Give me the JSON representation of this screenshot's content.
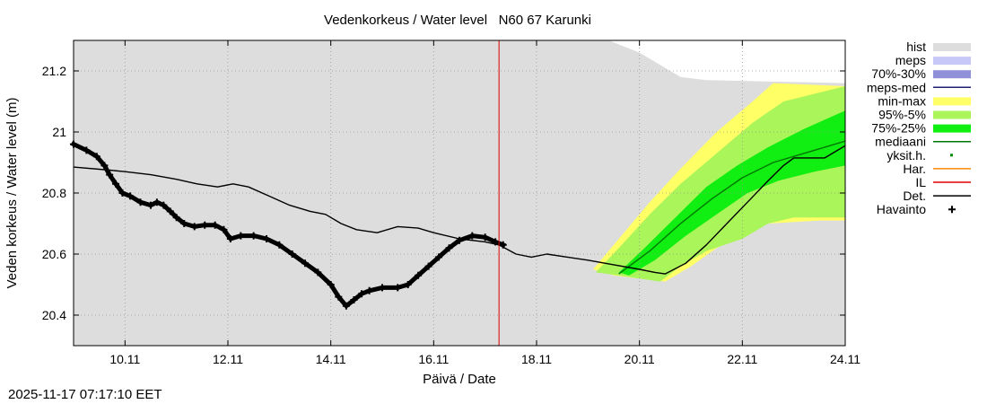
{
  "chart_data": {
    "type": "line",
    "title": "Vedenkorkeus / Water level   N60 67 Karunki",
    "xlabel": "Päivä / Date",
    "ylabel": "Veden korkeus / Water level (m)",
    "x_unit": "days since 2025-11-09 00:00",
    "xlim": [
      0,
      15
    ],
    "ylim": [
      20.3,
      21.3
    ],
    "grid": true,
    "x_ticks": [
      {
        "x": 1,
        "label": "10.11"
      },
      {
        "x": 3,
        "label": "12.11"
      },
      {
        "x": 5,
        "label": "14.11"
      },
      {
        "x": 7,
        "label": "16.11"
      },
      {
        "x": 9,
        "label": "18.11"
      },
      {
        "x": 11,
        "label": "20.11"
      },
      {
        "x": 13,
        "label": "22.11"
      },
      {
        "x": 15,
        "label": "24.11"
      }
    ],
    "y_ticks": [
      {
        "y": 20.4,
        "label": "20.4"
      },
      {
        "y": 20.6,
        "label": "20.6"
      },
      {
        "y": 20.8,
        "label": "20.8"
      },
      {
        "y": 21.0,
        "label": "21"
      },
      {
        "y": 21.2,
        "label": "21.2"
      }
    ],
    "current_time_x": 8.27,
    "legend": {
      "placement": "right",
      "items": [
        {
          "label": "hist",
          "color": "#dddddd",
          "kind": "band"
        },
        {
          "label": "meps",
          "color": "#c8c8f8",
          "kind": "band"
        },
        {
          "label": "70%-30%",
          "color": "#9090d8",
          "kind": "band"
        },
        {
          "label": "meps-med",
          "color": "#202070",
          "kind": "line"
        },
        {
          "label": "min-max",
          "color": "#ffff66",
          "kind": "band"
        },
        {
          "label": "95%-5%",
          "color": "#aaf55a",
          "kind": "band"
        },
        {
          "label": "75%-25%",
          "color": "#11ee11",
          "kind": "band"
        },
        {
          "label": "mediaani",
          "color": "#007700",
          "kind": "line"
        },
        {
          "label": "yksit.h.",
          "color": "#008800",
          "kind": "dot"
        },
        {
          "label": "Har.",
          "color": "#ff8800",
          "kind": "line"
        },
        {
          "label": "IL",
          "color": "#dd0000",
          "kind": "line"
        },
        {
          "label": "Det.",
          "color": "#000000",
          "kind": "line"
        },
        {
          "label": "Havainto",
          "color": "#000000",
          "kind": "plus"
        }
      ]
    },
    "series": [
      {
        "name": "hist",
        "kind": "band",
        "color": "#dddddd",
        "upper": [
          [
            0,
            21.3
          ],
          [
            10.4,
            21.3
          ],
          [
            11.0,
            21.26
          ],
          [
            11.5,
            21.21
          ],
          [
            11.8,
            21.18
          ],
          [
            12.3,
            21.17
          ],
          [
            15,
            21.16
          ]
        ],
        "lower": [
          [
            0,
            20.3
          ],
          [
            15,
            20.3
          ]
        ]
      },
      {
        "name": "min-max",
        "kind": "band",
        "color": "#ffff66",
        "upper": [
          [
            10.1,
            20.55
          ],
          [
            10.6,
            20.65
          ],
          [
            11.2,
            20.77
          ],
          [
            11.8,
            20.88
          ],
          [
            12.5,
            21.0
          ],
          [
            13.2,
            21.1
          ],
          [
            13.6,
            21.16
          ],
          [
            15,
            21.15
          ]
        ],
        "lower": [
          [
            10.5,
            20.53
          ],
          [
            11.0,
            20.52
          ],
          [
            11.5,
            20.51
          ],
          [
            12.0,
            20.56
          ],
          [
            12.5,
            20.62
          ],
          [
            13.0,
            20.66
          ],
          [
            13.5,
            20.7
          ],
          [
            14.5,
            20.71
          ],
          [
            15,
            20.71
          ]
        ]
      },
      {
        "name": "95%-5%",
        "kind": "band",
        "color": "#aaf55a",
        "upper": [
          [
            10.15,
            20.54
          ],
          [
            10.6,
            20.62
          ],
          [
            11.2,
            20.73
          ],
          [
            11.8,
            20.83
          ],
          [
            12.5,
            20.93
          ],
          [
            13.2,
            21.03
          ],
          [
            13.8,
            21.1
          ],
          [
            15,
            21.15
          ]
        ],
        "lower": [
          [
            10.6,
            20.53
          ],
          [
            11.0,
            20.52
          ],
          [
            11.4,
            20.51
          ],
          [
            11.8,
            20.56
          ],
          [
            12.3,
            20.61
          ],
          [
            13.0,
            20.65
          ],
          [
            13.5,
            20.7
          ],
          [
            14.0,
            20.72
          ],
          [
            15,
            20.72
          ]
        ]
      },
      {
        "name": "75%-25%",
        "kind": "band",
        "color": "#11ee11",
        "upper": [
          [
            10.6,
            20.54
          ],
          [
            11.1,
            20.62
          ],
          [
            11.7,
            20.72
          ],
          [
            12.3,
            20.82
          ],
          [
            12.9,
            20.89
          ],
          [
            13.5,
            20.95
          ],
          [
            14.2,
            21.01
          ],
          [
            15,
            21.07
          ]
        ],
        "lower": [
          [
            10.8,
            20.53
          ],
          [
            11.3,
            20.58
          ],
          [
            11.9,
            20.66
          ],
          [
            12.5,
            20.73
          ],
          [
            13.1,
            20.8
          ],
          [
            13.7,
            20.84
          ],
          [
            14.4,
            20.87
          ],
          [
            15,
            20.89
          ]
        ]
      },
      {
        "name": "mediaani",
        "kind": "line",
        "color": "#007700",
        "points": [
          [
            10.6,
            20.535
          ],
          [
            11.2,
            20.61
          ],
          [
            11.8,
            20.7
          ],
          [
            12.4,
            20.78
          ],
          [
            13.0,
            20.85
          ],
          [
            13.6,
            20.9
          ],
          [
            14.2,
            20.93
          ],
          [
            15,
            20.97
          ]
        ]
      },
      {
        "name": "Det.",
        "kind": "line",
        "color": "#000000",
        "points": [
          [
            0,
            20.885
          ],
          [
            0.7,
            20.875
          ],
          [
            1.0,
            20.87
          ],
          [
            1.5,
            20.86
          ],
          [
            2.0,
            20.845
          ],
          [
            2.4,
            20.83
          ],
          [
            2.8,
            20.82
          ],
          [
            3.1,
            20.83
          ],
          [
            3.4,
            20.82
          ],
          [
            3.8,
            20.79
          ],
          [
            4.2,
            20.76
          ],
          [
            4.6,
            20.74
          ],
          [
            4.9,
            20.73
          ],
          [
            5.2,
            20.7
          ],
          [
            5.5,
            20.68
          ],
          [
            5.9,
            20.67
          ],
          [
            6.3,
            20.69
          ],
          [
            6.7,
            20.685
          ],
          [
            7.0,
            20.67
          ],
          [
            7.5,
            20.65
          ],
          [
            8.0,
            20.64
          ],
          [
            8.27,
            20.63
          ],
          [
            8.6,
            20.6
          ],
          [
            8.9,
            20.59
          ],
          [
            9.2,
            20.6
          ],
          [
            9.6,
            20.59
          ],
          [
            10.0,
            20.58
          ],
          [
            10.5,
            20.565
          ],
          [
            11.0,
            20.55
          ],
          [
            11.3,
            20.54
          ],
          [
            11.5,
            20.535
          ],
          [
            11.9,
            20.57
          ],
          [
            12.3,
            20.63
          ],
          [
            12.7,
            20.7
          ],
          [
            13.1,
            20.77
          ],
          [
            13.5,
            20.84
          ],
          [
            13.8,
            20.89
          ],
          [
            14.0,
            20.915
          ],
          [
            14.6,
            20.915
          ],
          [
            15,
            20.955
          ]
        ]
      },
      {
        "name": "Havainto",
        "kind": "plus",
        "color": "#000000",
        "points": [
          [
            0,
            20.96
          ],
          [
            0.25,
            20.94
          ],
          [
            0.45,
            20.92
          ],
          [
            0.6,
            20.89
          ],
          [
            0.7,
            20.86
          ],
          [
            0.82,
            20.83
          ],
          [
            0.95,
            20.8
          ],
          [
            1.1,
            20.79
          ],
          [
            1.3,
            20.77
          ],
          [
            1.5,
            20.76
          ],
          [
            1.62,
            20.77
          ],
          [
            1.75,
            20.76
          ],
          [
            1.88,
            20.74
          ],
          [
            2.0,
            20.72
          ],
          [
            2.15,
            20.7
          ],
          [
            2.35,
            20.69
          ],
          [
            2.55,
            20.695
          ],
          [
            2.75,
            20.695
          ],
          [
            2.92,
            20.68
          ],
          [
            3.05,
            20.65
          ],
          [
            3.25,
            20.66
          ],
          [
            3.5,
            20.66
          ],
          [
            3.75,
            20.65
          ],
          [
            4.0,
            20.63
          ],
          [
            4.25,
            20.6
          ],
          [
            4.5,
            20.57
          ],
          [
            4.75,
            20.54
          ],
          [
            5.0,
            20.5
          ],
          [
            5.15,
            20.46
          ],
          [
            5.3,
            20.43
          ],
          [
            5.45,
            20.45
          ],
          [
            5.6,
            20.47
          ],
          [
            5.75,
            20.48
          ],
          [
            6.0,
            20.49
          ],
          [
            6.3,
            20.49
          ],
          [
            6.5,
            20.5
          ],
          [
            6.7,
            20.53
          ],
          [
            6.9,
            20.56
          ],
          [
            7.1,
            20.59
          ],
          [
            7.3,
            20.62
          ],
          [
            7.5,
            20.645
          ],
          [
            7.75,
            20.66
          ],
          [
            8.0,
            20.655
          ],
          [
            8.2,
            20.64
          ],
          [
            8.35,
            20.63
          ]
        ]
      }
    ]
  },
  "timestamp": "2025-11-17 07:17:10 EET"
}
